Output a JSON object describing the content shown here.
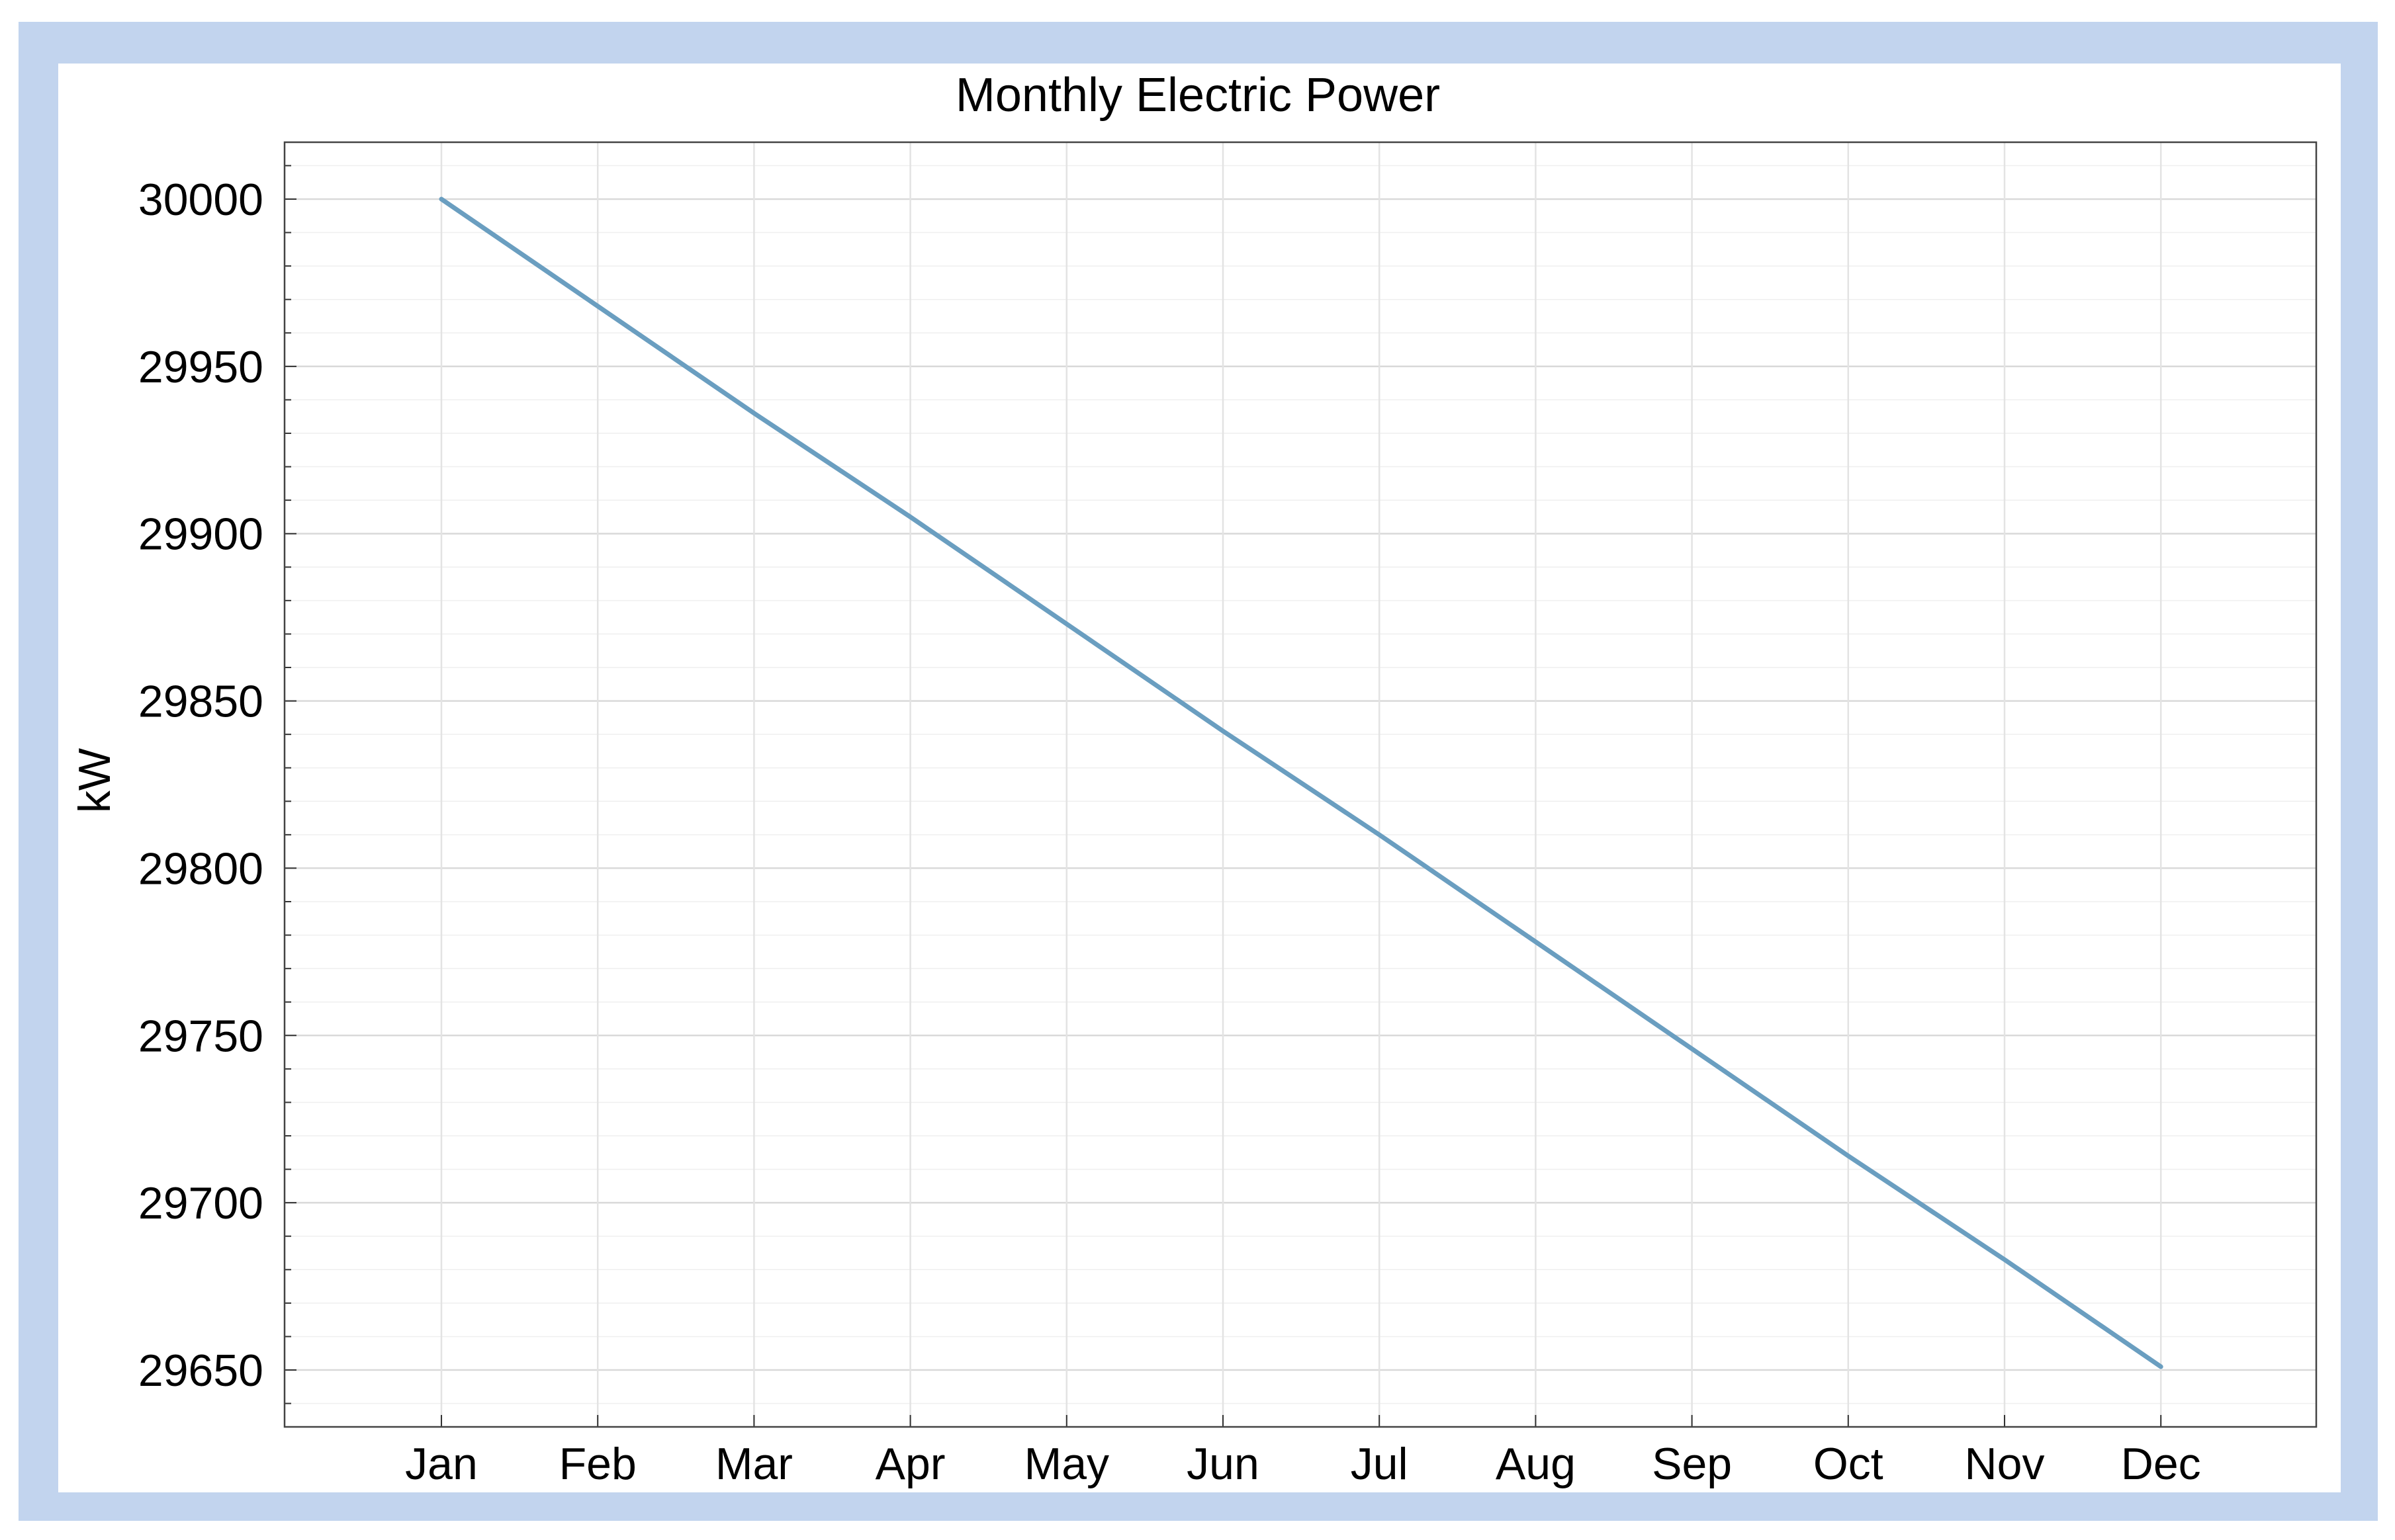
{
  "chart_data": {
    "type": "line",
    "title": "Monthly Electric Power",
    "xlabel": "",
    "ylabel": "kW",
    "categories": [
      "Jan",
      "Feb",
      "Mar",
      "Apr",
      "May",
      "Jun",
      "Jul",
      "Aug",
      "Sep",
      "Oct",
      "Nov",
      "Dec"
    ],
    "series": [
      {
        "values": [
          30000,
          29968,
          29936,
          29905,
          29873,
          29841,
          29810,
          29778,
          29746,
          29714,
          29683,
          29651
        ],
        "color": "#6a9ec0"
      }
    ],
    "ylim": [
      29633,
      30017
    ],
    "yticks": [
      30000,
      29950,
      29900,
      29850,
      29800,
      29750,
      29700,
      29650
    ],
    "grid": true,
    "legend": "none"
  }
}
